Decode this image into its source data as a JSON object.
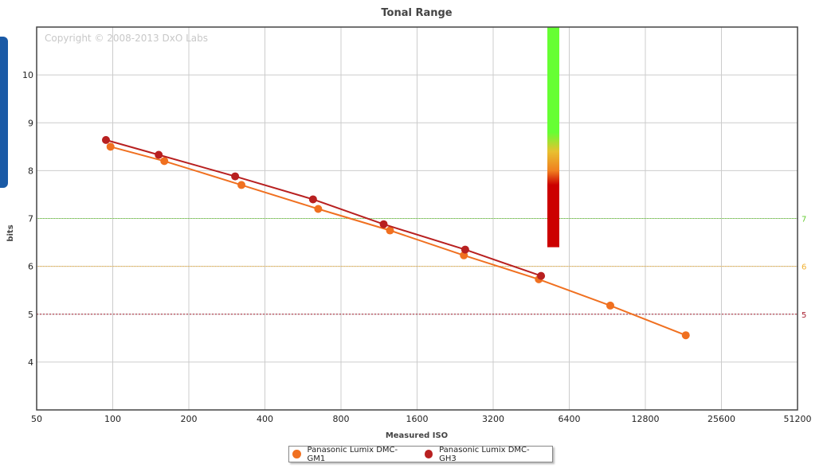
{
  "chart_data": {
    "type": "line",
    "title": "Tonal Range",
    "xlabel": "Measured ISO",
    "ylabel": "bits",
    "copyright": "Copyright © 2008-2013 DxO Labs",
    "x_scale": "log2",
    "xlim": [
      50,
      51200
    ],
    "ylim": [
      3,
      11
    ],
    "x_ticks": [
      50,
      100,
      200,
      400,
      800,
      1600,
      3200,
      6400,
      12800,
      25600,
      51200
    ],
    "y_ticks": [
      4,
      5,
      6,
      7,
      8,
      9,
      10
    ],
    "grid": true,
    "legend_position": "bottom-center",
    "reference_lines": [
      {
        "label": "7",
        "y": 7,
        "color": "#66cc33"
      },
      {
        "label": "6",
        "y": 6,
        "color": "#f0b030"
      },
      {
        "label": "5",
        "y": 5,
        "color": "#aa2233"
      }
    ],
    "color_scale": {
      "y_range": [
        6.4,
        11
      ],
      "stops": [
        {
          "y": 11,
          "color": "#66ff33"
        },
        {
          "y": 8.8,
          "color": "#66ff33"
        },
        {
          "y": 8.4,
          "color": "#e8c030"
        },
        {
          "y": 8.0,
          "color": "#f08020"
        },
        {
          "y": 7.7,
          "color": "#cc0000"
        },
        {
          "y": 6.4,
          "color": "#cc0000"
        }
      ]
    },
    "series": [
      {
        "name": "Panasonic Lumix DMC-GM1",
        "color": "#f07020",
        "x": [
          98,
          160,
          323,
          650,
          1250,
          2450,
          4850,
          9300,
          18500
        ],
        "y": [
          8.5,
          8.2,
          7.7,
          7.2,
          6.75,
          6.23,
          5.73,
          5.18,
          4.56
        ]
      },
      {
        "name": "Panasonic Lumix DMC-GH3",
        "color": "#b82020",
        "x": [
          94,
          152,
          305,
          620,
          1180,
          2480,
          4950
        ],
        "y": [
          8.64,
          8.33,
          7.88,
          7.4,
          6.88,
          6.35,
          5.8
        ]
      }
    ]
  }
}
